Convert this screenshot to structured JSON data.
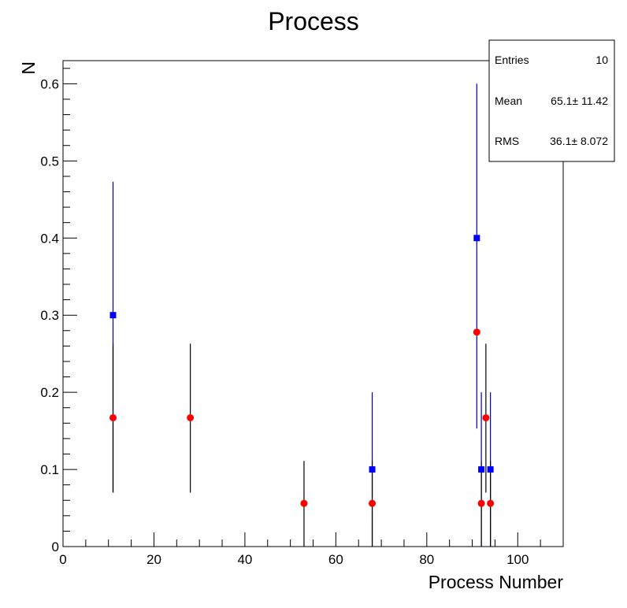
{
  "chart_data": {
    "type": "scatter",
    "title": "Process",
    "xlabel": "Process Number",
    "ylabel": "N",
    "xlim": [
      0,
      110
    ],
    "ylim": [
      0,
      0.63
    ],
    "x_ticks": [
      0,
      20,
      40,
      60,
      80,
      100
    ],
    "y_ticks": [
      0,
      0.1,
      0.2,
      0.3,
      0.4,
      0.5,
      0.6
    ],
    "x_tick_labels": [
      "0",
      "20",
      "40",
      "60",
      "80",
      "100"
    ],
    "y_tick_labels": [
      "0",
      "0.1",
      "0.2",
      "0.3",
      "0.4",
      "0.5",
      "0.6"
    ],
    "grid": false,
    "series": [
      {
        "marker": "square",
        "color": "#0000ff",
        "errorbar_color": "#000099",
        "points": [
          {
            "x": 11,
            "y": 0.3,
            "ylow": 0.07,
            "yhigh": 0.473
          },
          {
            "x": 68,
            "y": 0.1,
            "ylow": 0.0,
            "yhigh": 0.2
          },
          {
            "x": 91,
            "y": 0.4,
            "ylow": 0.153,
            "yhigh": 0.6
          },
          {
            "x": 92,
            "y": 0.1,
            "ylow": 0.0,
            "yhigh": 0.2
          },
          {
            "x": 94,
            "y": 0.1,
            "ylow": 0.0,
            "yhigh": 0.2
          }
        ]
      },
      {
        "marker": "circle",
        "color": "#ff0000",
        "errorbar_color": "#000000",
        "points": [
          {
            "x": 11,
            "y": 0.167,
            "ylow": 0.07,
            "yhigh": 0.263
          },
          {
            "x": 28,
            "y": 0.167,
            "ylow": 0.07,
            "yhigh": 0.263
          },
          {
            "x": 53,
            "y": 0.056,
            "ylow": 0.0,
            "yhigh": 0.111
          },
          {
            "x": 68,
            "y": 0.056,
            "ylow": 0.0,
            "yhigh": 0.111
          },
          {
            "x": 91,
            "y": 0.278,
            "ylow": 0.0,
            "yhigh": 0.0
          },
          {
            "x": 92,
            "y": 0.056,
            "ylow": 0.0,
            "yhigh": 0.111
          },
          {
            "x": 93,
            "y": 0.167,
            "ylow": 0.07,
            "yhigh": 0.263
          },
          {
            "x": 94,
            "y": 0.056,
            "ylow": 0.0,
            "yhigh": 0.111
          }
        ]
      }
    ],
    "stats": {
      "entries_label": "Entries",
      "entries_value": "10",
      "mean_label": "Mean",
      "mean_value": "65.1±  11.42",
      "rms_label": "RMS",
      "rms_value": "36.1±  8.072"
    }
  }
}
